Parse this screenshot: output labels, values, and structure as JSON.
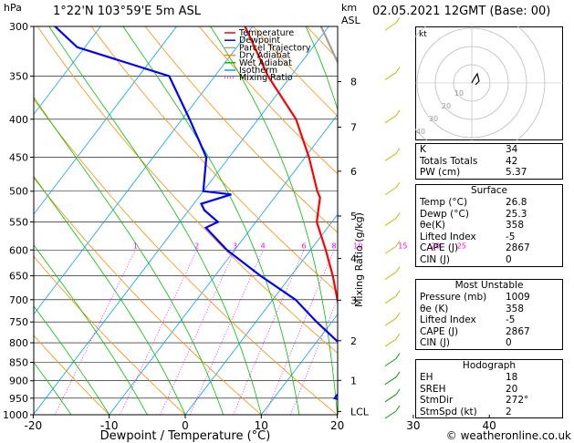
{
  "header": {
    "hpa_label": "hPa",
    "location": "1°22'N  103°59'E  5m  ASL",
    "km_label": "km",
    "asl_label": "ASL",
    "datetime": "02.05.2021  12GMT  (Base: 00)"
  },
  "footer": {
    "copyright": "© weatheronline.co.uk"
  },
  "legend": {
    "items": [
      {
        "label": "Temperature",
        "color": "#ff0000",
        "style": "solid"
      },
      {
        "label": "Dewpoint",
        "color": "#0000ff",
        "style": "solid"
      },
      {
        "label": "Parcel Trajectory",
        "color": "#a0a0a0",
        "style": "solid"
      },
      {
        "label": "Dry Adiabat",
        "color": "#ff8c00",
        "style": "solid"
      },
      {
        "label": "Wet Adiabat",
        "color": "#00c000",
        "style": "solid"
      },
      {
        "label": "Isotherm",
        "color": "#00a0ff",
        "style": "solid"
      },
      {
        "label": "Mixing Ratio",
        "color": "#ff00ff",
        "style": "dotted"
      }
    ]
  },
  "chart_data": {
    "type": "line",
    "chart_kind": "skew-T log-P sounding",
    "xlabel": "Dewpoint / Temperature (°C)",
    "ylabel": "hPa",
    "y_scale": "log",
    "ylim": [
      1000,
      300
    ],
    "xlim": [
      -35,
      40
    ],
    "x_ticks": [
      -30,
      -20,
      -10,
      0,
      10,
      20,
      30,
      40
    ],
    "pressure_ticks": [
      300,
      350,
      400,
      450,
      500,
      550,
      600,
      650,
      700,
      750,
      800,
      850,
      900,
      950,
      1000
    ],
    "km_ticks": [
      {
        "label": "8",
        "p": 356
      },
      {
        "label": "7",
        "p": 410
      },
      {
        "label": "6",
        "p": 470
      },
      {
        "label": "5",
        "p": 540
      },
      {
        "label": "4",
        "p": 616
      },
      {
        "label": "3",
        "p": 701
      },
      {
        "label": "2",
        "p": 795
      },
      {
        "label": "1",
        "p": 899
      },
      {
        "label": "LCL",
        "p": 990
      }
    ],
    "mixing_ratio_axis_label": "Mixing Ratio (g/kg)",
    "mixing_ratio_labels": [
      "1",
      "2",
      "3",
      "4",
      "6",
      "8",
      "10",
      "15",
      "20",
      "25"
    ],
    "mixing_ratio_values": [
      1,
      2,
      3,
      4,
      6,
      8,
      10,
      15,
      20,
      25
    ],
    "series": [
      {
        "name": "Temperature",
        "color": "#ff0000",
        "p": [
          1000,
          950,
          900,
          850,
          800,
          750,
          700,
          650,
          600,
          550,
          510,
          500,
          450,
          400,
          350,
          300
        ],
        "t": [
          26.8,
          23.5,
          21.5,
          18.0,
          15.0,
          11.5,
          8.5,
          5.5,
          2.0,
          -2.0,
          -4.0,
          -5.0,
          -9.5,
          -15.0,
          -23.0,
          -31.0
        ]
      },
      {
        "name": "Dewpoint",
        "color": "#0000ff",
        "p": [
          1000,
          975,
          950,
          925,
          900,
          850,
          800,
          750,
          700,
          650,
          600,
          560,
          550,
          530,
          520,
          505,
          500,
          450,
          400,
          350,
          320,
          300
        ],
        "t": [
          25.3,
          23.0,
          18.0,
          18.0,
          17.5,
          15.5,
          13.0,
          8.0,
          3.0,
          -4.0,
          -11.0,
          -16.0,
          -15.0,
          -18.0,
          -19.0,
          -16.0,
          -20.0,
          -23.0,
          -29.0,
          -36.0,
          -51.0,
          -56.0
        ]
      },
      {
        "name": "Parcel Trajectory",
        "color": "#a0a0a0",
        "p": [
          1000,
          950,
          900,
          850,
          800,
          750,
          700,
          650,
          600,
          550,
          500,
          450,
          400,
          350,
          300
        ],
        "t": [
          26.8,
          25.0,
          23.0,
          21.0,
          19.0,
          17.0,
          14.5,
          12.0,
          9.0,
          6.0,
          2.5,
          -1.5,
          -6.5,
          -13.0,
          -21.0
        ]
      }
    ],
    "wind_barbs_pressures": [
      300,
      350,
      400,
      450,
      500,
      550,
      600,
      650,
      700,
      750,
      800,
      850,
      900,
      950,
      1000
    ],
    "hodograph": {
      "label": "kt",
      "ring_labels": [
        "10",
        "20",
        "30",
        "40"
      ]
    }
  },
  "indices": [
    {
      "label": "K",
      "value": "34"
    },
    {
      "label": "Totals Totals",
      "value": "42"
    },
    {
      "label": "PW (cm)",
      "value": "5.37"
    }
  ],
  "surface": {
    "title": "Surface",
    "rows": [
      {
        "label": "Temp (°C)",
        "value": "26.8"
      },
      {
        "label": "Dewp (°C)",
        "value": "25.3"
      },
      {
        "label": "θe(K)",
        "value": "358"
      },
      {
        "label": "Lifted Index",
        "value": "-5"
      },
      {
        "label": "CAPE (J)",
        "value": "2867"
      },
      {
        "label": "CIN (J)",
        "value": "0"
      }
    ]
  },
  "most_unstable": {
    "title": "Most Unstable",
    "rows": [
      {
        "label": "Pressure (mb)",
        "value": "1009"
      },
      {
        "label": "θe (K)",
        "value": "358"
      },
      {
        "label": "Lifted Index",
        "value": "-5"
      },
      {
        "label": "CAPE (J)",
        "value": "2867"
      },
      {
        "label": "CIN (J)",
        "value": "0"
      }
    ]
  },
  "hodograph_table": {
    "title": "Hodograph",
    "rows": [
      {
        "label": "EH",
        "value": "18"
      },
      {
        "label": "SREH",
        "value": "20"
      },
      {
        "label": "StmDir",
        "value": "272°"
      },
      {
        "label": "StmSpd (kt)",
        "value": "2"
      }
    ]
  }
}
